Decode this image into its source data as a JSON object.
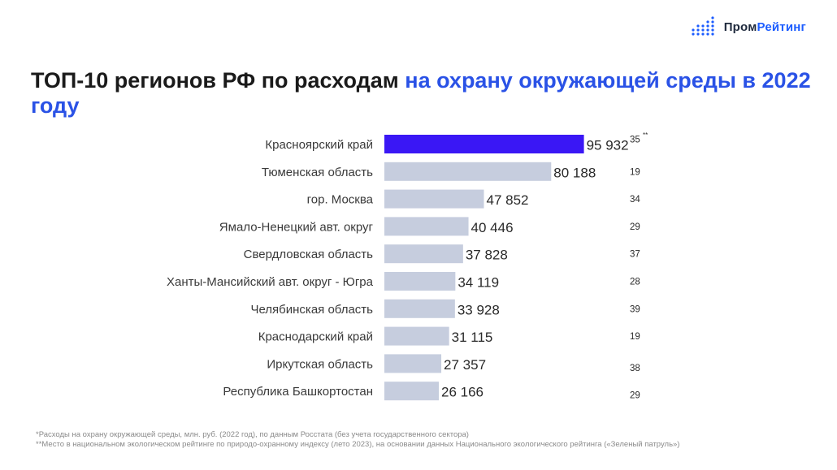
{
  "logo": {
    "text_part1": "Пром",
    "text_part2": "Рейтинг",
    "icon": "bar-dots-icon",
    "accent_color": "#1b5cff"
  },
  "title": {
    "main": "ТОП-10 регионов РФ по расходам ",
    "highlight": "на охрану окружающей среды в 2022 году"
  },
  "chart_data": {
    "type": "bar",
    "orientation": "horizontal",
    "categories": [
      "Красноярский край",
      "Тюменская область",
      "гор. Москва",
      "Ямало-Ненецкий авт. округ",
      "Свердловская область",
      "Ханты-Мансийский авт. округ - Югра",
      "Челябинская область",
      "Краснодарский край",
      "Иркутская область",
      "Республика Башкортостан"
    ],
    "values": [
      95932,
      80188,
      47852,
      40446,
      37828,
      34119,
      33928,
      31115,
      27357,
      26166
    ],
    "value_labels": [
      "95 932",
      "80 188",
      "47 852",
      "40 446",
      "37 828",
      "34 119",
      "33 928",
      "31 115",
      "27 357",
      "26 166"
    ],
    "ranks": [
      "35",
      "19",
      "34",
      "29",
      "37",
      "28",
      "39",
      "19",
      "38",
      "29"
    ],
    "rank_marker": "**",
    "xlim": [
      0,
      100000
    ],
    "highlight_color": "#3a17f5",
    "bar_color": "#c6cdde",
    "grid": false,
    "legend": "none"
  },
  "footnotes": {
    "line1": "*Расходы на охрану окружающей среды, млн. руб. (2022 год), по данным Росстата (без учета государственного сектора)",
    "line2": "**Место в национальном экологическом рейтинге по природо-охранному индексу (лето 2023), на основании данных Национального экологического рейтинга («Зеленый патруль»)"
  }
}
